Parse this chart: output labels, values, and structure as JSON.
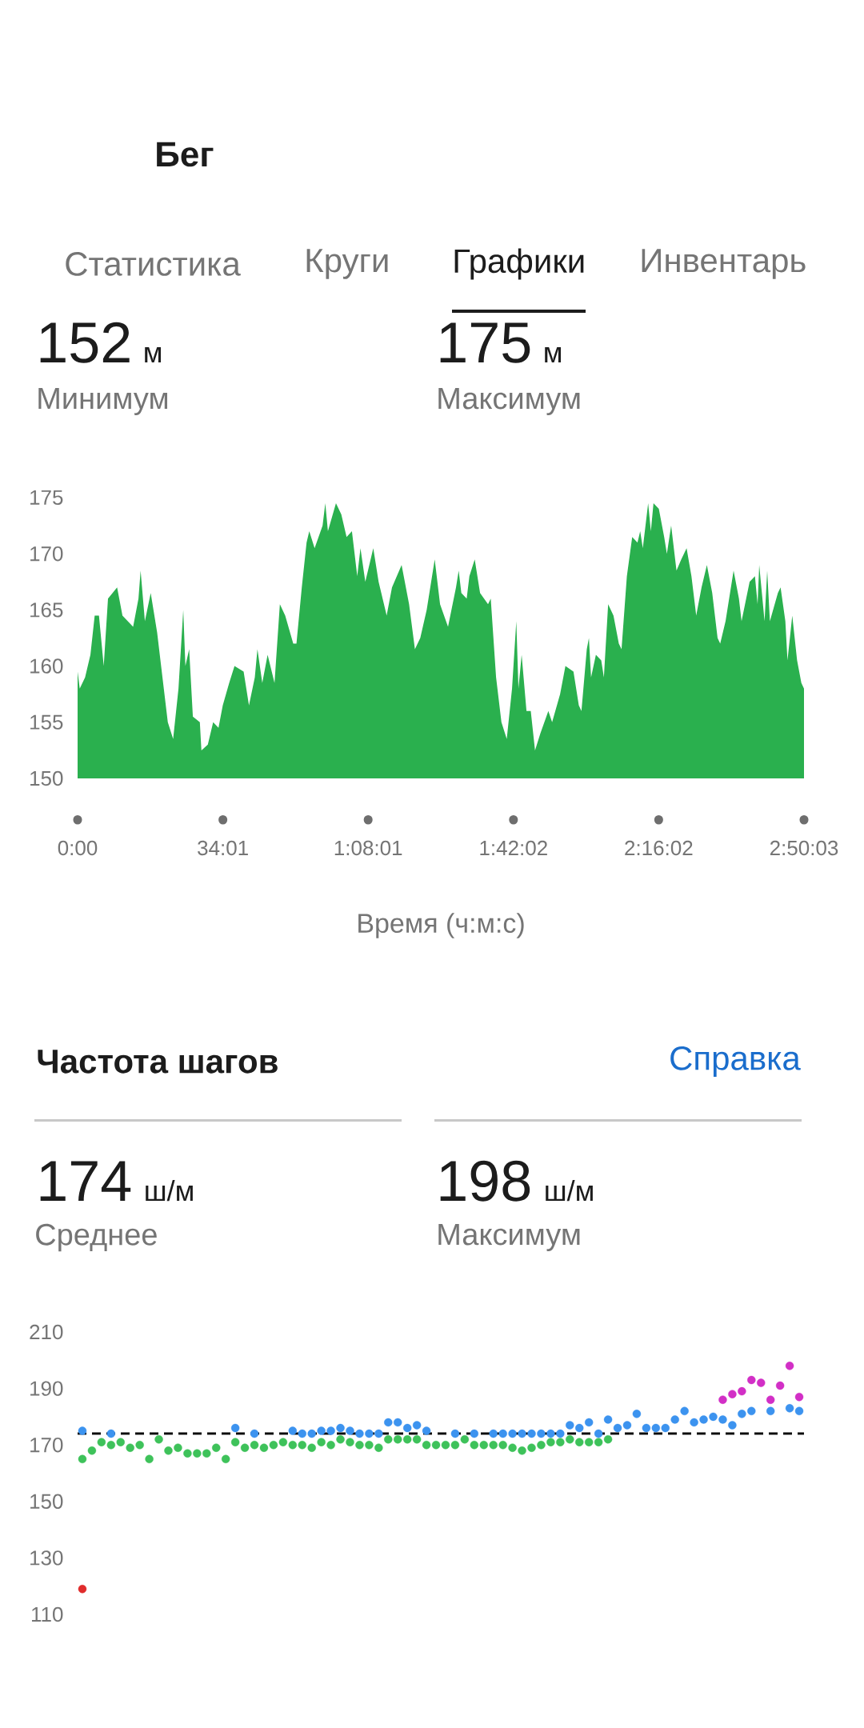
{
  "chart_data": [
    {
      "type": "area",
      "xlabel": "Время (ч:м:с)",
      "annotations": [
        "Бег",
        "Статистика",
        "Круги",
        "Графики",
        "Инвентарь",
        "152",
        "м",
        "Минимум",
        "175",
        "м",
        "Максимум"
      ],
      "x": [
        0,
        30,
        105,
        180,
        240,
        300,
        367,
        427,
        555,
        630,
        705,
        780,
        855,
        885,
        945,
        1027,
        1117,
        1192,
        1267,
        1342,
        1417,
        1484,
        1514,
        1567,
        1619,
        1717,
        1739,
        1829,
        1904,
        1979,
        2039,
        2129,
        2204,
        2332,
        2407,
        2489,
        2526,
        2594,
        2669,
        2766,
        2841,
        2916,
        3029,
        3074,
        3149,
        3216,
        3254,
        3329,
        3441,
        3479,
        3516,
        3629,
        3704,
        3778,
        3853,
        3928,
        3973,
        4041,
        4153,
        4228,
        4341,
        4416,
        4551,
        4656,
        4738,
        4813,
        4903,
        5016,
        5091,
        5203,
        5315,
        5353,
        5390,
        5465,
        5503,
        5578,
        5653,
        5765,
        5803,
        5878,
        5953,
        6028,
        6102,
        6162,
        6192,
        6237,
        6305,
        6365,
        6425,
        6500,
        6612,
        6665,
        6777,
        6852,
        6965,
        7040,
        7077,
        7152,
        7182,
        7212,
        7280,
        7355,
        7392,
        7452,
        7527,
        7602,
        7640,
        7715,
        7790,
        7864,
        7902,
        7939,
        8014,
        8052,
        8089,
        8164,
        8239,
        8277,
        8337,
        8412,
        8479,
        8554,
        8622,
        8689,
        8764,
        8839,
        8914,
        8989,
        9026,
        9101,
        9214,
        9289,
        9326,
        9439,
        9514,
        9551,
        9574,
        9649,
        9686,
        9724,
        9836,
        9874,
        9941,
        9971,
        10038,
        10106,
        10166,
        10203
      ],
      "values": [
        159.5,
        158,
        159,
        161,
        164.5,
        164.5,
        160,
        166,
        167,
        164.5,
        164,
        163.5,
        166,
        168.5,
        164,
        166.5,
        163,
        159,
        155,
        153.5,
        158,
        165,
        160,
        161.5,
        155.5,
        155,
        152.5,
        153,
        155,
        154.5,
        156.5,
        158.5,
        160,
        159.5,
        156.5,
        159,
        161.5,
        158.5,
        161,
        158.5,
        165.5,
        164.5,
        162,
        162,
        167,
        171,
        172,
        170.5,
        172.5,
        174.5,
        172,
        174.5,
        173.5,
        171.5,
        172,
        168,
        170.5,
        167.5,
        170.5,
        167.5,
        164.5,
        167,
        169,
        165.5,
        161.5,
        162.5,
        165,
        169.5,
        165.5,
        163.5,
        167,
        168.5,
        166.5,
        166,
        168,
        169.5,
        166.5,
        165.5,
        166,
        159,
        155,
        153.5,
        158,
        164,
        158,
        161,
        156,
        156,
        152.5,
        154,
        156,
        155,
        157.5,
        160,
        159.5,
        156.5,
        156,
        161.5,
        162.5,
        159,
        161,
        160.5,
        159,
        165.5,
        164.5,
        162,
        161.5,
        168,
        171.5,
        171,
        172,
        170.5,
        174.5,
        172,
        174.5,
        174,
        171.5,
        170,
        172.5,
        168.5,
        169.5,
        170.5,
        168,
        164.5,
        167,
        169,
        166.5,
        162.5,
        162,
        164,
        168.5,
        166,
        164,
        167.5,
        168,
        165.5,
        169,
        164,
        168.5,
        164,
        166.5,
        167,
        164,
        160.5,
        164.5,
        160.5,
        158.5,
        158
      ],
      "color": "#2AB04E",
      "xlim": [
        0,
        10203
      ],
      "ylim": [
        150,
        175
      ],
      "xticks": [
        {
          "value": 0,
          "label": "0:00"
        },
        {
          "value": 2041,
          "label": "34:01"
        },
        {
          "value": 4081,
          "label": "1:08:01"
        },
        {
          "value": 6122,
          "label": "1:42:02"
        },
        {
          "value": 8162,
          "label": "2:16:02"
        },
        {
          "value": 10203,
          "label": "2:50:03"
        }
      ],
      "yticks": [
        150,
        155,
        160,
        165,
        170,
        175
      ]
    },
    {
      "type": "scatter",
      "title": "Частота шагов",
      "annotations": [
        "Справка",
        "174",
        "ш/м",
        "Среднее",
        "198",
        "ш/м",
        "Максимум"
      ],
      "categories": [
        null,
        null,
        null,
        null,
        null,
        null,
        null,
        null,
        null,
        null,
        null,
        null,
        null,
        null,
        null,
        null,
        null,
        null,
        null,
        null,
        null,
        null,
        null,
        null,
        null,
        null,
        null,
        null,
        null,
        null,
        null,
        null,
        null,
        null,
        null,
        null,
        null,
        null,
        null,
        null,
        null,
        null,
        null,
        null,
        null,
        null,
        null,
        null,
        null,
        null,
        null,
        null,
        null,
        null,
        null,
        null,
        null,
        null,
        null,
        null,
        null,
        null,
        null,
        null,
        null,
        null,
        null,
        null,
        null,
        null,
        null,
        null,
        null,
        null,
        null,
        null
      ],
      "series": [
        {
          "color": "#3EC25A",
          "values": [
            165,
            168,
            171,
            170,
            171,
            169,
            170,
            165,
            172,
            168,
            169,
            167,
            167,
            167,
            169,
            165,
            171,
            169,
            170,
            169,
            170,
            171,
            170,
            170,
            169,
            171,
            170,
            172,
            171,
            170,
            170,
            169,
            172,
            172,
            172,
            172,
            170,
            170,
            170,
            170,
            172,
            170,
            170,
            170,
            170,
            169,
            168,
            169,
            170,
            171,
            171,
            172,
            171,
            171,
            171,
            172,
            null,
            null,
            null,
            null,
            null,
            null,
            null,
            null,
            null,
            null,
            null,
            null,
            null,
            null,
            null,
            null,
            null,
            null,
            null,
            null
          ]
        },
        {
          "color": "#3C93EF",
          "values": [
            175,
            null,
            null,
            174,
            null,
            null,
            null,
            null,
            null,
            null,
            null,
            null,
            null,
            null,
            null,
            null,
            176,
            null,
            174,
            null,
            null,
            null,
            175,
            174,
            174,
            175,
            175,
            176,
            175,
            174,
            174,
            174,
            178,
            178,
            176,
            177,
            175,
            null,
            null,
            174,
            null,
            174,
            null,
            174,
            174,
            174,
            174,
            174,
            174,
            174,
            174,
            177,
            176,
            178,
            174,
            179,
            176,
            177,
            181,
            176,
            176,
            176,
            179,
            182,
            178,
            179,
            180,
            179,
            177,
            181,
            182,
            null,
            182,
            null,
            183,
            182
          ]
        },
        {
          "color": "#D22FC6",
          "values": [
            null,
            null,
            null,
            null,
            null,
            null,
            null,
            null,
            null,
            null,
            null,
            null,
            null,
            null,
            null,
            null,
            null,
            null,
            null,
            null,
            null,
            null,
            null,
            null,
            null,
            null,
            null,
            null,
            null,
            null,
            null,
            null,
            null,
            null,
            null,
            null,
            null,
            null,
            null,
            null,
            null,
            null,
            null,
            null,
            null,
            null,
            null,
            null,
            null,
            null,
            null,
            null,
            null,
            null,
            null,
            null,
            null,
            null,
            null,
            null,
            null,
            null,
            null,
            null,
            null,
            null,
            null,
            186,
            188,
            189,
            193,
            192,
            186,
            191,
            198,
            187
          ]
        },
        {
          "color": "#E02C2C",
          "values": [
            119,
            null,
            null,
            null,
            null,
            null,
            null,
            null,
            null,
            null,
            null,
            null,
            null,
            null,
            null,
            null,
            null,
            null,
            null,
            null,
            null,
            null,
            null,
            null,
            null,
            null,
            null,
            null,
            null,
            null,
            null,
            null,
            null,
            null,
            null,
            null,
            null,
            null,
            null,
            null,
            null,
            null,
            null,
            null,
            null,
            null,
            null,
            null,
            null,
            null,
            null,
            null,
            null,
            null,
            null,
            null,
            null,
            null,
            null,
            null,
            null,
            null,
            null,
            null,
            null,
            null,
            null,
            null,
            null,
            null,
            null,
            null,
            null,
            null,
            null,
            null
          ]
        }
      ],
      "ylim": [
        110,
        210
      ],
      "yticks": [
        110,
        130,
        150,
        170,
        190,
        210
      ],
      "marker": "circle",
      "ref_lines": [
        {
          "axis": "y",
          "value": 174,
          "color": "#000000",
          "line_style": "dashed"
        }
      ]
    }
  ]
}
